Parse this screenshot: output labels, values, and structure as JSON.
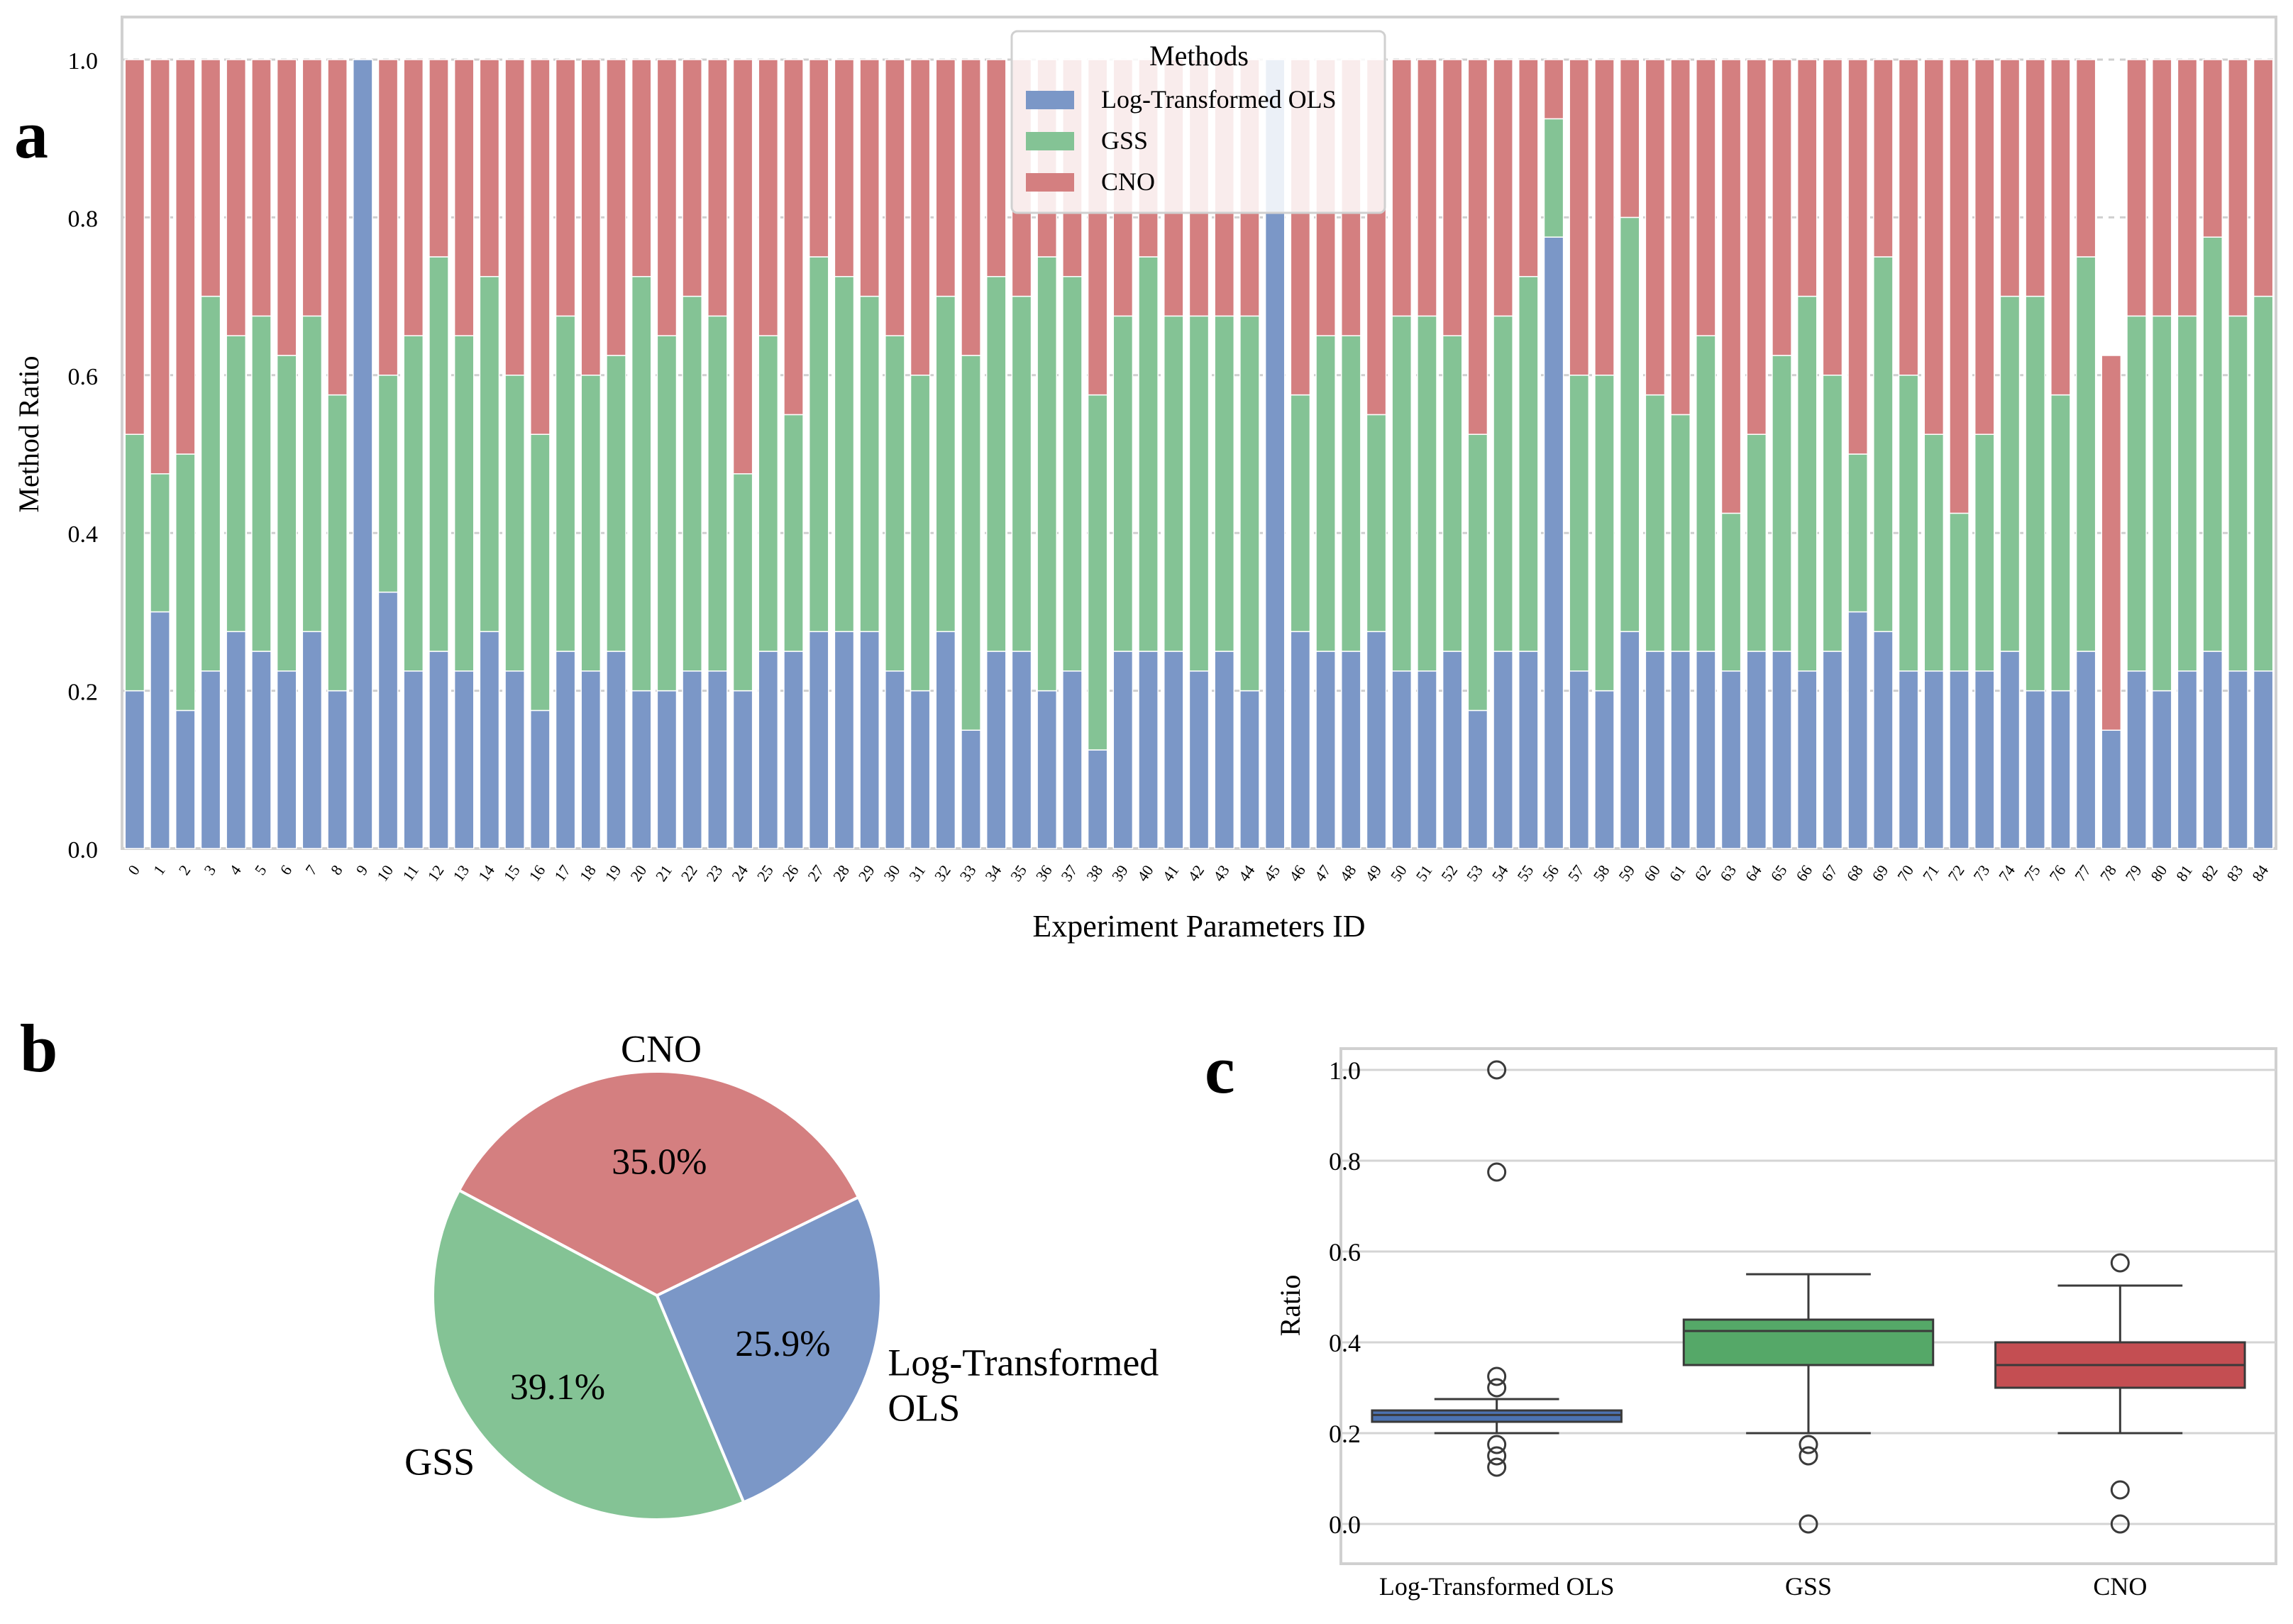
{
  "panel_labels": {
    "a": "a",
    "b": "b",
    "c": "c"
  },
  "chart_data": [
    {
      "panel": "a",
      "type": "bar",
      "stacked": true,
      "xlabel": "Experiment Parameters ID",
      "ylabel": "Method Ratio",
      "ylim": [
        0,
        1
      ],
      "yticks": [
        "0.0",
        "0.2",
        "0.4",
        "0.6",
        "0.8",
        "1.0"
      ],
      "categories": [
        "0",
        "1",
        "2",
        "3",
        "4",
        "5",
        "6",
        "7",
        "8",
        "9",
        "10",
        "11",
        "12",
        "13",
        "14",
        "15",
        "16",
        "17",
        "18",
        "19",
        "20",
        "21",
        "22",
        "23",
        "24",
        "25",
        "26",
        "27",
        "28",
        "29",
        "30",
        "31",
        "32",
        "33",
        "34",
        "35",
        "36",
        "37",
        "38",
        "39",
        "40",
        "41",
        "42",
        "43",
        "44",
        "45",
        "46",
        "47",
        "48",
        "49",
        "50",
        "51",
        "52",
        "53",
        "54",
        "55",
        "56",
        "57",
        "58",
        "59",
        "60",
        "61",
        "62",
        "63",
        "64",
        "65",
        "66",
        "67",
        "68",
        "69",
        "70",
        "71",
        "72",
        "73",
        "74",
        "75",
        "76",
        "77",
        "78",
        "79",
        "80",
        "81",
        "82",
        "83",
        "84"
      ],
      "legend": {
        "title": "Methods",
        "position": "top-center"
      },
      "series": [
        {
          "name": "Log-Transformed OLS",
          "color": "#7b97c7",
          "values": [
            0.2,
            0.3,
            0.175,
            0.225,
            0.275,
            0.25,
            0.225,
            0.275,
            0.2,
            1.0,
            0.325,
            0.225,
            0.25,
            0.225,
            0.275,
            0.225,
            0.175,
            0.25,
            0.225,
            0.25,
            0.2,
            0.2,
            0.225,
            0.225,
            0.2,
            0.25,
            0.25,
            0.275,
            0.275,
            0.275,
            0.225,
            0.2,
            0.275,
            0.15,
            0.25,
            0.25,
            0.2,
            0.225,
            0.125,
            0.25,
            0.25,
            0.25,
            0.225,
            0.25,
            0.2,
            1.0,
            0.275,
            0.25,
            0.25,
            0.275,
            0.225,
            0.225,
            0.25,
            0.175,
            0.25,
            0.25,
            0.775,
            0.225,
            0.2,
            0.275,
            0.25,
            0.25,
            0.25,
            0.225,
            0.25,
            0.25,
            0.225,
            0.25,
            0.3,
            0.275,
            0.225,
            0.225,
            0.225,
            0.225,
            0.25,
            0.2,
            0.2,
            0.25,
            0.15,
            0.225,
            0.2,
            0.225,
            0.25,
            0.225,
            0.225
          ]
        },
        {
          "name": "GSS",
          "color": "#84c395",
          "values": [
            0.325,
            0.175,
            0.325,
            0.475,
            0.375,
            0.425,
            0.4,
            0.4,
            0.375,
            0.0,
            0.275,
            0.425,
            0.5,
            0.425,
            0.45,
            0.375,
            0.35,
            0.425,
            0.375,
            0.375,
            0.525,
            0.45,
            0.475,
            0.45,
            0.275,
            0.4,
            0.3,
            0.475,
            0.45,
            0.425,
            0.425,
            0.4,
            0.425,
            0.475,
            0.475,
            0.45,
            0.55,
            0.5,
            0.45,
            0.425,
            0.5,
            0.425,
            0.45,
            0.425,
            0.475,
            0.0,
            0.3,
            0.4,
            0.4,
            0.275,
            0.45,
            0.45,
            0.4,
            0.35,
            0.425,
            0.475,
            0.15,
            0.375,
            0.4,
            0.525,
            0.325,
            0.3,
            0.4,
            0.2,
            0.275,
            0.375,
            0.475,
            0.35,
            0.2,
            0.475,
            0.375,
            0.3,
            0.2,
            0.3,
            0.45,
            0.5,
            0.375,
            0.5,
            0.0,
            0.45,
            0.475,
            0.45,
            0.525,
            0.45,
            0.475
          ]
        },
        {
          "name": "CNO",
          "color": "#d47f80",
          "values": [
            0.475,
            0.525,
            0.5,
            0.3,
            0.35,
            0.325,
            0.375,
            0.325,
            0.425,
            0.0,
            0.4,
            0.35,
            0.25,
            0.35,
            0.275,
            0.4,
            0.475,
            0.325,
            0.4,
            0.375,
            0.275,
            0.35,
            0.3,
            0.325,
            0.525,
            0.35,
            0.45,
            0.25,
            0.275,
            0.3,
            0.35,
            0.4,
            0.3,
            0.375,
            0.275,
            0.3,
            0.25,
            0.275,
            0.425,
            0.325,
            0.25,
            0.325,
            0.325,
            0.325,
            0.325,
            0.0,
            0.425,
            0.35,
            0.35,
            0.45,
            0.325,
            0.325,
            0.35,
            0.475,
            0.325,
            0.275,
            0.075,
            0.4,
            0.4,
            0.2,
            0.425,
            0.45,
            0.35,
            0.575,
            0.475,
            0.375,
            0.3,
            0.4,
            0.5,
            0.25,
            0.4,
            0.475,
            0.575,
            0.475,
            0.3,
            0.3,
            0.425,
            0.25,
            0.475,
            0.325,
            0.325,
            0.325,
            0.225,
            0.325,
            0.3
          ]
        }
      ]
    },
    {
      "panel": "b",
      "type": "pie",
      "slices": [
        {
          "label": "CNO",
          "value": 35.0,
          "pct_label": "35.0%",
          "color": "#d47f80"
        },
        {
          "label": "GSS",
          "value": 39.1,
          "pct_label": "39.1%",
          "color": "#84c395"
        },
        {
          "label": "Log-Transformed OLS",
          "label_lines": [
            "Log-Transformed",
            "OLS"
          ],
          "value": 25.9,
          "pct_label": "25.9%",
          "color": "#7b97c7"
        }
      ]
    },
    {
      "panel": "c",
      "type": "box",
      "ylabel": "Ratio",
      "ylim": [
        -0.05,
        1.05
      ],
      "yticks": [
        "0.0",
        "0.2",
        "0.4",
        "0.6",
        "0.8",
        "1.0"
      ],
      "categories": [
        "Log-Transformed OLS",
        "GSS",
        "CNO"
      ],
      "boxes": [
        {
          "name": "Log-Transformed OLS",
          "color": "#4c72b0",
          "q1": 0.225,
          "median": 0.24,
          "q3": 0.25,
          "whisker_low": 0.2,
          "whisker_high": 0.275,
          "outliers": [
            1.0,
            0.775,
            0.325,
            0.3,
            0.175,
            0.15,
            0.125
          ]
        },
        {
          "name": "GSS",
          "color": "#55a868",
          "q1": 0.35,
          "median": 0.425,
          "q3": 0.45,
          "whisker_low": 0.2,
          "whisker_high": 0.55,
          "outliers": [
            0.175,
            0.15,
            0.0
          ]
        },
        {
          "name": "CNO",
          "color": "#c44e52",
          "q1": 0.3,
          "median": 0.35,
          "q3": 0.4,
          "whisker_low": 0.2,
          "whisker_high": 0.525,
          "outliers": [
            0.575,
            0.075,
            0.0
          ]
        }
      ]
    }
  ]
}
